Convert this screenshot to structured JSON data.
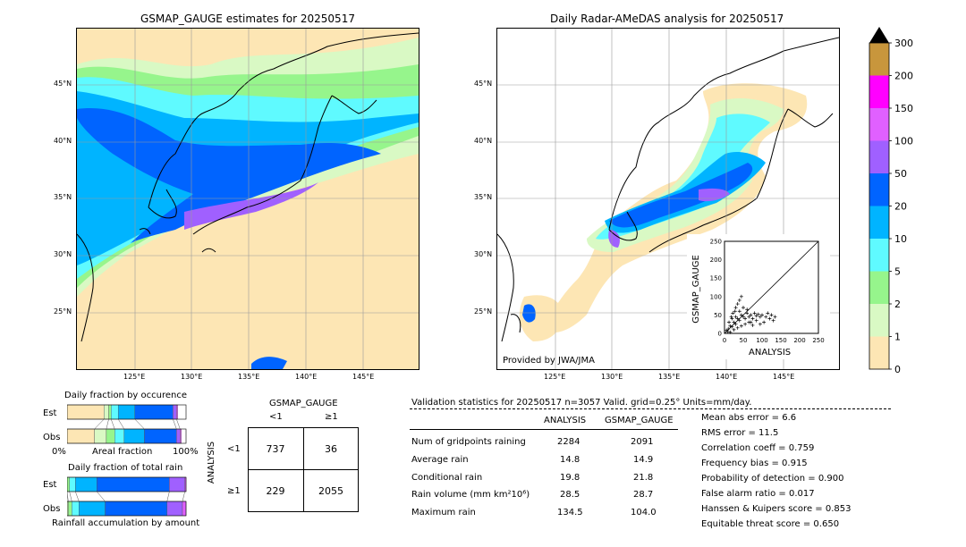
{
  "left_map": {
    "title": "GSMAP_GAUGE estimates for 20250517",
    "lat_ticks": [
      "45°N",
      "40°N",
      "35°N",
      "30°N",
      "25°N"
    ],
    "lon_ticks": [
      "125°E",
      "130°E",
      "135°E",
      "140°E",
      "145°E"
    ]
  },
  "right_map": {
    "title": "Daily Radar-AMeDAS analysis for 20250517",
    "lat_ticks": [
      "45°N",
      "40°N",
      "35°N",
      "30°N",
      "25°N"
    ],
    "lon_ticks": [
      "125°E",
      "130°E",
      "135°E",
      "140°E",
      "145°E"
    ],
    "credit": "Provided by JWA/JMA"
  },
  "colorbar": {
    "labels": [
      "300",
      "200",
      "150",
      "100",
      "50",
      "20",
      "10",
      "5",
      "2",
      "1",
      "0"
    ],
    "colors": [
      "#c8963c",
      "#ff00ff",
      "#e060ff",
      "#a060ff",
      "#0064ff",
      "#00b4ff",
      "#5ffaff",
      "#96f58c",
      "#d9f9c4",
      "#fde6b4"
    ]
  },
  "chart_data": [
    {
      "type": "scatter",
      "title": "",
      "xlabel": "ANALYSIS",
      "ylabel": "GSMAP_GAUGE",
      "xlim": [
        0,
        250
      ],
      "ylim": [
        0,
        250
      ],
      "xticks": [
        "0",
        "50",
        "100",
        "150",
        "200",
        "250"
      ],
      "yticks": [
        "0",
        "50",
        "100",
        "150",
        "200",
        "250"
      ],
      "points": [
        [
          5,
          8
        ],
        [
          10,
          12
        ],
        [
          15,
          20
        ],
        [
          20,
          18
        ],
        [
          25,
          30
        ],
        [
          30,
          25
        ],
        [
          35,
          40
        ],
        [
          40,
          35
        ],
        [
          45,
          50
        ],
        [
          50,
          45
        ],
        [
          55,
          40
        ],
        [
          60,
          55
        ],
        [
          65,
          45
        ],
        [
          70,
          50
        ],
        [
          75,
          40
        ],
        [
          80,
          55
        ],
        [
          85,
          48
        ],
        [
          90,
          52
        ],
        [
          95,
          45
        ],
        [
          100,
          50
        ],
        [
          110,
          45
        ],
        [
          120,
          40
        ],
        [
          130,
          35
        ],
        [
          12,
          30
        ],
        [
          18,
          45
        ],
        [
          22,
          55
        ],
        [
          28,
          60
        ],
        [
          30,
          70
        ],
        [
          35,
          80
        ],
        [
          40,
          90
        ],
        [
          45,
          100
        ],
        [
          8,
          5
        ],
        [
          15,
          3
        ],
        [
          25,
          10
        ],
        [
          35,
          15
        ],
        [
          45,
          20
        ],
        [
          55,
          25
        ],
        [
          65,
          30
        ],
        [
          75,
          22
        ],
        [
          20,
          40
        ],
        [
          30,
          45
        ],
        [
          40,
          60
        ],
        [
          50,
          70
        ],
        [
          60,
          65
        ],
        [
          70,
          30
        ],
        [
          85,
          35
        ],
        [
          95,
          25
        ],
        [
          105,
          30
        ],
        [
          115,
          55
        ],
        [
          125,
          50
        ],
        [
          134.5,
          45
        ]
      ]
    },
    {
      "type": "bar",
      "title": "Daily fraction by occurence",
      "categories": [
        "Est",
        "Obs"
      ],
      "xticks": [
        "0%",
        "100%"
      ],
      "xlabel": "Areal fraction",
      "series_colors": [
        "#fde6b4",
        "#d9f9c4",
        "#96f58c",
        "#5ffaff",
        "#00b4ff",
        "#0064ff",
        "#a060ff",
        "#e060ff"
      ],
      "rows": [
        {
          "name": "Est",
          "values": [
            0.31,
            0.04,
            0.02,
            0.06,
            0.14,
            0.32,
            0.03,
            0.01
          ]
        },
        {
          "name": "Obs",
          "values": [
            0.23,
            0.1,
            0.07,
            0.08,
            0.17,
            0.27,
            0.03,
            0.01
          ]
        }
      ]
    },
    {
      "type": "bar",
      "title": "Daily fraction of total rain",
      "categories": [
        "Est",
        "Obs"
      ],
      "xlabel": "Rainfall accumulation by amount",
      "series_colors": [
        "#fde6b4",
        "#d9f9c4",
        "#96f58c",
        "#5ffaff",
        "#00b4ff",
        "#0064ff",
        "#a060ff",
        "#e060ff"
      ],
      "rows": [
        {
          "name": "Est",
          "values": [
            0.0,
            0.0,
            0.02,
            0.05,
            0.18,
            0.61,
            0.13,
            0.01
          ]
        },
        {
          "name": "Obs",
          "values": [
            0.0,
            0.01,
            0.03,
            0.06,
            0.22,
            0.52,
            0.13,
            0.03
          ]
        }
      ]
    }
  ],
  "contingency": {
    "col_header": "GSMAP_GAUGE",
    "col_lt": "<1",
    "col_ge": "≥1",
    "row_header": "ANALYSIS",
    "row_lt": "<1",
    "row_ge": "≥1",
    "a": "737",
    "b": "36",
    "c": "229",
    "d": "2055"
  },
  "validation": {
    "header": "Validation statistics for 20250517  n=3057 Valid. grid=0.25° Units=mm/day.",
    "col1": "ANALYSIS",
    "col2": "GSMAP_GAUGE",
    "rows": [
      {
        "label": "Num of gridpoints raining",
        "a": "2284",
        "b": "2091"
      },
      {
        "label": "Average rain",
        "a": "14.8",
        "b": "14.9"
      },
      {
        "label": "Conditional rain",
        "a": "19.8",
        "b": "21.8"
      },
      {
        "label": "Rain volume (mm km²10⁶)",
        "a": "28.5",
        "b": "28.7"
      },
      {
        "label": "Maximum rain",
        "a": "134.5",
        "b": "104.0"
      }
    ],
    "scores": [
      "Mean abs error =    6.6",
      "RMS error =   11.5",
      "Correlation coeff =  0.759",
      "Frequency bias =  0.915",
      "Probability of detection =  0.900",
      "False alarm ratio =  0.017",
      "Hanssen & Kuipers score =  0.853",
      "Equitable threat score =  0.650"
    ]
  }
}
